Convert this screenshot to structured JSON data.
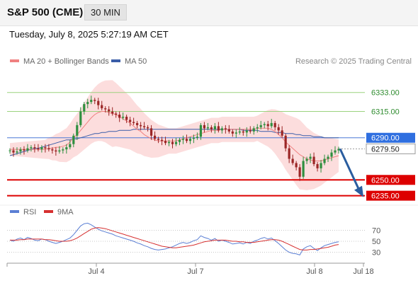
{
  "header": {
    "title": "S&P 500 (CME)",
    "timeframe": "30 MIN",
    "timestamp": "Tuesday, July 8, 2025 5:27:19 AM CET"
  },
  "legend": {
    "items": [
      {
        "label": "MA 20 + Bollinger Bands",
        "color": "#f08080"
      },
      {
        "label": "MA 50",
        "color": "#3a5da8"
      }
    ],
    "credit": "Research © 2025 Trading Central"
  },
  "colors": {
    "resistance": "#9bd27e",
    "support": "#dd0000",
    "ma50": "#3a5da8",
    "ma20": "#f08080",
    "band_fill": "#fbd7d7",
    "candle_up": "#2f8f3f",
    "candle_down": "#9b2626",
    "arrow": "#2a5d9f",
    "rsi": "#5b7fd4",
    "rsi_ma": "#d63030"
  },
  "chart_data": [
    {
      "type": "candlestick",
      "title": "S&P 500 (CME)",
      "interval": "30 MIN",
      "x_ticks": [
        "Jul 4",
        "Jul 7",
        "Jul 8",
        "Jul 18"
      ],
      "price_levels": [
        {
          "value": 6333.0,
          "label": "6333.00",
          "kind": "resistance"
        },
        {
          "value": 6315.0,
          "label": "6315.00",
          "kind": "resistance"
        },
        {
          "value": 6290.0,
          "label": "6290.00",
          "kind": "pivot"
        },
        {
          "value": 6279.5,
          "label": "6279.50",
          "kind": "last_price"
        },
        {
          "value": 6250.0,
          "label": "6250.00",
          "kind": "support"
        },
        {
          "value": 6235.0,
          "label": "6235.00",
          "kind": "support"
        }
      ],
      "last_price": 6279.5,
      "forecast_target": 6235.0,
      "close_series": [
        6278,
        6276,
        6277,
        6279,
        6278,
        6280,
        6281,
        6280,
        6279,
        6281,
        6280,
        6279,
        6278,
        6277,
        6278,
        6279,
        6281,
        6284,
        6292,
        6302,
        6315,
        6322,
        6324,
        6326,
        6325,
        6321,
        6318,
        6317,
        6315,
        6313,
        6312,
        6309,
        6310,
        6307,
        6305,
        6304,
        6302,
        6301,
        6300,
        6299,
        6292,
        6289,
        6288,
        6287,
        6285,
        6286,
        6284,
        6286,
        6288,
        6289,
        6287,
        6289,
        6290,
        6291,
        6302,
        6299,
        6300,
        6298,
        6301,
        6297,
        6299,
        6298,
        6296,
        6294,
        6295,
        6296,
        6295,
        6297,
        6296,
        6299,
        6300,
        6302,
        6303,
        6301,
        6304,
        6300,
        6297,
        6292,
        6280,
        6270,
        6266,
        6262,
        6253,
        6268,
        6270,
        6272,
        6265,
        6261,
        6266,
        6270,
        6272,
        6276,
        6278,
        6279.5
      ],
      "series": [
        {
          "name": "MA 20 + Bollinger Bands",
          "values": [
            6279,
            6279,
            6279,
            6279,
            6279,
            6279,
            6279,
            6279,
            6279,
            6279,
            6279,
            6280,
            6280,
            6281,
            6281,
            6282,
            6283,
            6286,
            6290,
            6293,
            6297,
            6301,
            6305,
            6309,
            6312,
            6314,
            6315,
            6315,
            6314,
            6313,
            6312,
            6310,
            6308,
            6306,
            6304,
            6301,
            6298,
            6296,
            6293,
            6291,
            6289,
            6288,
            6287,
            6287,
            6287,
            6287,
            6287,
            6287,
            6288,
            6289,
            6290,
            6291,
            6292,
            6293,
            6294,
            6295,
            6296,
            6297,
            6297,
            6297,
            6298,
            6298,
            6298,
            6298,
            6298,
            6298,
            6298,
            6298,
            6298,
            6298,
            6299,
            6299,
            6299,
            6299,
            6298,
            6296,
            6293,
            6290,
            6286,
            6283,
            6280,
            6277,
            6274,
            6272,
            6270,
            6269,
            6268,
            6268,
            6268,
            6269,
            6270,
            6271,
            6272,
            6273
          ]
        },
        {
          "name": "MA 50",
          "values": [
            6273,
            6274,
            6275,
            6276,
            6277,
            6278,
            6279,
            6280,
            6280,
            6281,
            6282,
            6283,
            6284,
            6285,
            6286,
            6287,
            6288,
            6288,
            6289,
            6289,
            6290,
            6291,
            6292,
            6293,
            6294,
            6294,
            6295,
            6295,
            6296,
            6296,
            6296,
            6297,
            6297,
            6297,
            6297,
            6298,
            6298,
            6298,
            6298,
            6298,
            6298,
            6298,
            6298,
            6298,
            6298,
            6298,
            6298,
            6298,
            6298,
            6298,
            6298,
            6298,
            6298,
            6298,
            6298,
            6298,
            6298,
            6298,
            6298,
            6298,
            6298,
            6298,
            6298,
            6298,
            6298,
            6298,
            6297,
            6297,
            6297,
            6297,
            6297,
            6296,
            6296,
            6296,
            6296,
            6295,
            6295,
            6295,
            6294,
            6294,
            6294,
            6293,
            6293,
            6292,
            6292,
            6292,
            6291,
            6291,
            6291,
            6290,
            6290,
            6290,
            6290,
            6290
          ]
        }
      ],
      "legend_position": "top-left"
    },
    {
      "type": "line",
      "x_ticks": [
        "Jul 4",
        "Jul 7",
        "Jul 8",
        "Jul 18"
      ],
      "y_ticks": [
        70,
        50,
        30
      ],
      "ylim": [
        10,
        90
      ],
      "grid": true,
      "legend_position": "top-left",
      "series": [
        {
          "name": "RSI",
          "values": [
            52,
            50,
            54,
            56,
            53,
            57,
            55,
            52,
            51,
            54,
            53,
            50,
            48,
            46,
            48,
            50,
            53,
            56,
            62,
            70,
            78,
            82,
            83,
            80,
            76,
            72,
            69,
            67,
            65,
            63,
            60,
            58,
            56,
            54,
            52,
            50,
            47,
            45,
            42,
            40,
            37,
            35,
            34,
            35,
            36,
            38,
            40,
            43,
            46,
            48,
            46,
            48,
            51,
            53,
            60,
            57,
            55,
            52,
            55,
            50,
            52,
            50,
            48,
            45,
            46,
            47,
            45,
            48,
            46,
            50,
            52,
            55,
            57,
            54,
            56,
            51,
            46,
            40,
            34,
            30,
            28,
            27,
            25,
            36,
            40,
            42,
            37,
            33,
            38,
            42,
            44,
            46,
            48,
            49
          ]
        },
        {
          "name": "9MA",
          "values": [
            52,
            52,
            52,
            53,
            53,
            54,
            54,
            54,
            54,
            54,
            53,
            53,
            52,
            51,
            50,
            50,
            50,
            51,
            53,
            56,
            60,
            64,
            68,
            72,
            74,
            75,
            74,
            73,
            71,
            69,
            67,
            65,
            63,
            61,
            59,
            57,
            55,
            53,
            51,
            49,
            47,
            45,
            43,
            41,
            40,
            39,
            38,
            38,
            39,
            40,
            41,
            42,
            43,
            45,
            47,
            49,
            50,
            51,
            52,
            52,
            52,
            52,
            51,
            50,
            50,
            49,
            49,
            48,
            48,
            48,
            49,
            50,
            51,
            52,
            53,
            53,
            52,
            50,
            47,
            44,
            41,
            38,
            35,
            34,
            34,
            35,
            35,
            36,
            37,
            38,
            39,
            41,
            43,
            44
          ]
        }
      ]
    }
  ]
}
